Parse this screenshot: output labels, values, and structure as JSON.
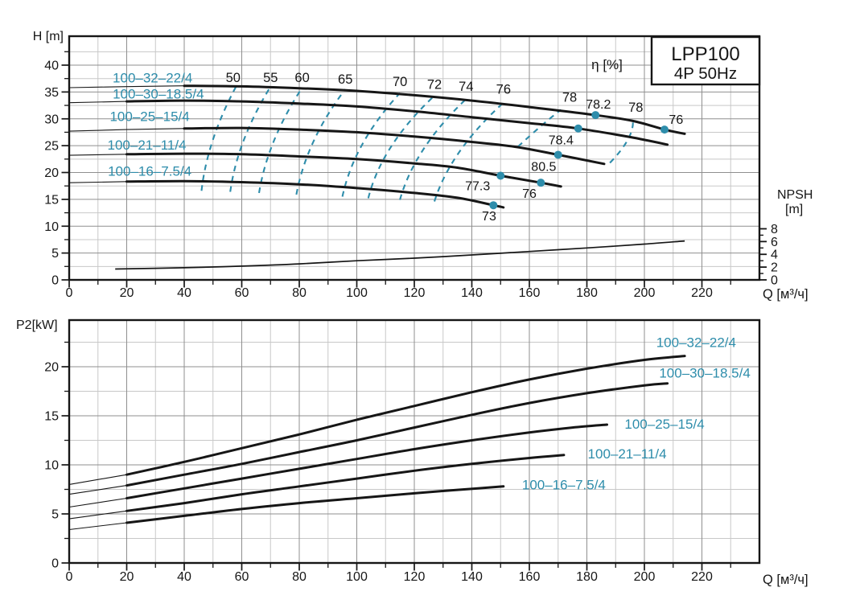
{
  "figure": {
    "title_box": {
      "line1": "LPP100",
      "line2": "4P  50Hz"
    },
    "colors": {
      "teal": "#2e8dab",
      "black": "#161616",
      "grid_major": "#8f8f8f",
      "grid_minor": "#c8c8c8",
      "background": "#ffffff"
    }
  },
  "chart_data": [
    {
      "id": "head-flow-chart",
      "type": "line",
      "ylabel": "H [m]",
      "xlabel": "Q [м³/ч]",
      "eta_label": "η [%]",
      "eta_label_pos": [
        187,
        40.1
      ],
      "xlim": [
        0,
        240
      ],
      "ylim": [
        0,
        45.4
      ],
      "x_major": [
        0,
        20,
        40,
        60,
        80,
        100,
        120,
        140,
        160,
        180,
        200,
        220
      ],
      "x_minor_step": 10,
      "y_major": [
        0,
        5,
        10,
        15,
        20,
        25,
        30,
        35,
        40
      ],
      "y_minor_step": 2.5,
      "series": [
        {
          "name": "100–32–22/4",
          "label_pos": [
            29,
            37.7
          ],
          "thick_from": 36,
          "points": [
            [
              0,
              35.8
            ],
            [
              20,
              36.0
            ],
            [
              40,
              36.15
            ],
            [
              60,
              36.05
            ],
            [
              80,
              35.7
            ],
            [
              100,
              35.2
            ],
            [
              120,
              34.4
            ],
            [
              140,
              33.4
            ],
            [
              160,
              32.2
            ],
            [
              183,
              30.7
            ],
            [
              196,
              29.6
            ],
            [
              207,
              28.0
            ],
            [
              214,
              27.2
            ]
          ]
        },
        {
          "name": "100–30–18.5/4",
          "label_pos": [
            31,
            34.7
          ],
          "thick_from": 16,
          "points": [
            [
              0,
              33.0
            ],
            [
              20,
              33.25
            ],
            [
              40,
              33.4
            ],
            [
              60,
              33.25
            ],
            [
              80,
              32.85
            ],
            [
              100,
              32.3
            ],
            [
              120,
              31.4
            ],
            [
              140,
              30.3
            ],
            [
              160,
              29.2
            ],
            [
              177,
              28.2
            ],
            [
              195,
              26.6
            ],
            [
              208,
              25.2
            ]
          ]
        },
        {
          "name": "100–25–15/4",
          "label_pos": [
            28,
            30.5
          ],
          "thick_from": 23,
          "points": [
            [
              0,
              27.7
            ],
            [
              20,
              28.0
            ],
            [
              40,
              28.2
            ],
            [
              60,
              28.3
            ],
            [
              80,
              28.0
            ],
            [
              100,
              27.5
            ],
            [
              120,
              26.7
            ],
            [
              140,
              25.7
            ],
            [
              155,
              24.8
            ],
            [
              170,
              23.3
            ],
            [
              186,
              21.6
            ]
          ]
        },
        {
          "name": "100–21–11/4",
          "label_pos": [
            27,
            25.2
          ],
          "thick_from": 15,
          "points": [
            [
              0,
              23.2
            ],
            [
              20,
              23.4
            ],
            [
              40,
              23.5
            ],
            [
              60,
              23.4
            ],
            [
              80,
              23.0
            ],
            [
              100,
              22.5
            ],
            [
              120,
              21.7
            ],
            [
              135,
              20.9
            ],
            [
              150,
              19.4
            ],
            [
              164,
              18.1
            ],
            [
              171,
              17.4
            ]
          ]
        },
        {
          "name": "100–16–7.5/4",
          "label_pos": [
            28,
            20.3
          ],
          "thick_from": 15,
          "points": [
            [
              0,
              18.1
            ],
            [
              20,
              18.3
            ],
            [
              40,
              18.4
            ],
            [
              60,
              18.2
            ],
            [
              80,
              17.8
            ],
            [
              100,
              17.1
            ],
            [
              120,
              16.2
            ],
            [
              135,
              15.3
            ],
            [
              147.5,
              13.9
            ],
            [
              151,
              13.5
            ]
          ]
        }
      ],
      "duty_points": [
        {
          "label": "78.2",
          "q": 183,
          "v": 30.7,
          "label_pos": [
            184,
            32.7
          ]
        },
        {
          "label": "76",
          "q": 207,
          "v": 28.0,
          "label_pos": [
            211,
            29.9
          ]
        },
        {
          "label": "78.4",
          "q": 177,
          "v": 28.2,
          "label_pos": [
            171,
            26.1
          ]
        },
        {
          "label": "80.5",
          "q": 170,
          "v": 23.3,
          "label_pos": [
            165,
            21.1
          ]
        },
        {
          "label": "77.3",
          "q": 150,
          "v": 19.4,
          "label_pos": [
            142,
            17.5
          ]
        },
        {
          "label": "76",
          "q": 164,
          "v": 18.1,
          "label_pos": [
            160,
            16.1
          ]
        },
        {
          "label": "73",
          "q": 147.5,
          "v": 13.9,
          "label_pos": [
            146,
            11.9
          ]
        }
      ],
      "contours": [
        {
          "label": "50",
          "label_pos": [
            57,
            37.7
          ],
          "path": [
            [
              46,
              16.6
            ],
            [
              48,
              26
            ],
            [
              58,
              36.0
            ]
          ]
        },
        {
          "label": "55",
          "label_pos": [
            70,
            37.7
          ],
          "path": [
            [
              56,
              16.4
            ],
            [
              58.5,
              26
            ],
            [
              70,
              36.0
            ]
          ]
        },
        {
          "label": "60",
          "label_pos": [
            81,
            37.7
          ],
          "path": [
            [
              66,
              16.2
            ],
            [
              69,
              26
            ],
            [
              81,
              35.8
            ]
          ]
        },
        {
          "label": "65",
          "label_pos": [
            96,
            37.4
          ],
          "path": [
            [
              79,
              15.9
            ],
            [
              82.5,
              26
            ],
            [
              96,
              35.5
            ]
          ]
        },
        {
          "label": "70",
          "label_pos": [
            115,
            36.9
          ],
          "path": [
            [
              95,
              15.5
            ],
            [
              99,
              25.5
            ],
            [
              115,
              34.8
            ]
          ]
        },
        {
          "label": "72",
          "label_pos": [
            127,
            36.4
          ],
          "path": [
            [
              104,
              15.2
            ],
            [
              108.5,
              25
            ],
            [
              127,
              34.3
            ]
          ]
        },
        {
          "label": "74",
          "label_pos": [
            138,
            36.0
          ],
          "path": [
            [
              115,
              14.9
            ],
            [
              120,
              24.5
            ],
            [
              138,
              33.7
            ]
          ]
        },
        {
          "label": "76",
          "label_pos": [
            151,
            35.5
          ],
          "path": [
            [
              127,
              14.6
            ],
            [
              132.5,
              24
            ],
            [
              151,
              33.0
            ]
          ]
        },
        {
          "label": "78",
          "label_pos": [
            174,
            34.0
          ],
          "path": [
            [
              156,
              24.8
            ],
            [
              164.5,
              29
            ],
            [
              171,
              31.7
            ]
          ]
        },
        {
          "label": "78",
          "label_pos": [
            197,
            32.1
          ],
          "path": [
            [
              188,
              21.8
            ],
            [
              196.5,
              26.5
            ],
            [
              196,
              29.7
            ]
          ]
        }
      ],
      "npsh": {
        "title_line1": "NPSH",
        "title_line2": "[m]",
        "ticks": [
          0,
          2,
          4,
          6,
          8
        ],
        "minor_ticks": [
          1,
          3,
          5,
          7
        ],
        "points": [
          [
            16,
            1.7
          ],
          [
            40,
            1.9
          ],
          [
            60,
            2.15
          ],
          [
            80,
            2.5
          ],
          [
            100,
            3.0
          ],
          [
            120,
            3.4
          ],
          [
            140,
            3.9
          ],
          [
            160,
            4.45
          ],
          [
            180,
            5.0
          ],
          [
            200,
            5.6
          ],
          [
            214,
            6.1
          ]
        ]
      }
    },
    {
      "id": "power-flow-chart",
      "type": "line",
      "ylabel": "P2[kW]",
      "xlabel": "Q [м³/ч]",
      "xlim": [
        0,
        240
      ],
      "ylim": [
        0,
        24.75
      ],
      "x_major": [
        0,
        20,
        40,
        60,
        80,
        100,
        120,
        140,
        160,
        180,
        200,
        220
      ],
      "x_minor_step": 10,
      "y_major": [
        0,
        5,
        10,
        15,
        20
      ],
      "y_minor_step": 2.5,
      "series": [
        {
          "name": "100–32–22/4",
          "label_pos": [
            218,
            22.5
          ],
          "thick_from": 18,
          "points": [
            [
              0,
              8.0
            ],
            [
              20,
              9.0
            ],
            [
              40,
              10.3
            ],
            [
              60,
              11.7
            ],
            [
              80,
              13.1
            ],
            [
              100,
              14.6
            ],
            [
              120,
              16.0
            ],
            [
              140,
              17.4
            ],
            [
              160,
              18.7
            ],
            [
              180,
              19.8
            ],
            [
              200,
              20.7
            ],
            [
              214,
              21.1
            ]
          ]
        },
        {
          "name": "100–30–18.5/4",
          "label_pos": [
            221,
            19.4
          ],
          "thick_from": 18,
          "points": [
            [
              0,
              7.0
            ],
            [
              20,
              7.9
            ],
            [
              40,
              9.0
            ],
            [
              60,
              10.1
            ],
            [
              80,
              11.3
            ],
            [
              100,
              12.5
            ],
            [
              120,
              13.8
            ],
            [
              140,
              15.1
            ],
            [
              160,
              16.3
            ],
            [
              180,
              17.3
            ],
            [
              200,
              18.1
            ],
            [
              208,
              18.3
            ]
          ]
        },
        {
          "name": "100–25–15/4",
          "label_pos": [
            207,
            14.2
          ],
          "thick_from": 15,
          "points": [
            [
              0,
              5.7
            ],
            [
              20,
              6.6
            ],
            [
              40,
              7.6
            ],
            [
              60,
              8.6
            ],
            [
              80,
              9.6
            ],
            [
              100,
              10.6
            ],
            [
              120,
              11.6
            ],
            [
              140,
              12.5
            ],
            [
              160,
              13.3
            ],
            [
              175,
              13.8
            ],
            [
              187,
              14.1
            ]
          ]
        },
        {
          "name": "100–21–11/4",
          "label_pos": [
            194,
            11.15
          ],
          "thick_from": 13,
          "points": [
            [
              0,
              4.5
            ],
            [
              20,
              5.3
            ],
            [
              40,
              6.1
            ],
            [
              60,
              7.0
            ],
            [
              80,
              7.8
            ],
            [
              100,
              8.6
            ],
            [
              120,
              9.4
            ],
            [
              140,
              10.1
            ],
            [
              160,
              10.7
            ],
            [
              172,
              11.0
            ]
          ]
        },
        {
          "name": "100–16–7.5/4",
          "label_pos": [
            172,
            8.0
          ],
          "thick_from": 12,
          "points": [
            [
              0,
              3.4
            ],
            [
              20,
              4.1
            ],
            [
              40,
              4.8
            ],
            [
              60,
              5.5
            ],
            [
              80,
              6.1
            ],
            [
              100,
              6.6
            ],
            [
              120,
              7.1
            ],
            [
              135,
              7.45
            ],
            [
              151,
              7.8
            ]
          ]
        }
      ]
    }
  ]
}
